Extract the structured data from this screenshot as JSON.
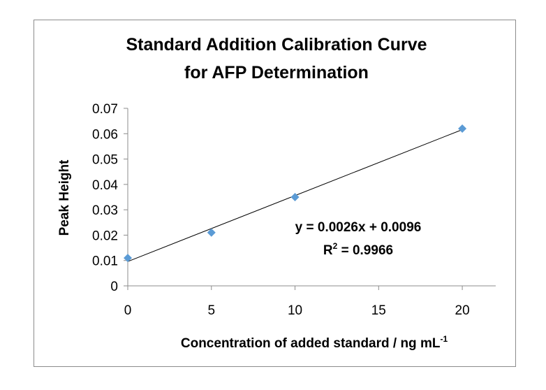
{
  "chart_data": {
    "type": "scatter",
    "title": [
      "Standard Addition Calibration Curve",
      "for AFP Determination"
    ],
    "xlabel": "Concentration of added standard / ng mL",
    "xlabel_superscript": "-1",
    "ylabel": "Peak Height",
    "xlim": [
      0,
      22
    ],
    "ylim": [
      0,
      0.07
    ],
    "x_ticks": [
      0,
      5,
      10,
      15,
      20
    ],
    "x_tick_labels": [
      "0",
      "5",
      "10",
      "15",
      "20"
    ],
    "y_ticks": [
      0,
      0.01,
      0.02,
      0.03,
      0.04,
      0.05,
      0.06,
      0.07
    ],
    "y_tick_labels": [
      "0",
      "0.01",
      "0.02",
      "0.03",
      "0.04",
      "0.05",
      "0.06",
      "0.07"
    ],
    "grid": false,
    "legend": "none",
    "series": [
      {
        "x": [
          0,
          5,
          10,
          20
        ],
        "y": [
          0.011,
          0.021,
          0.035,
          0.062
        ],
        "marker": "diamond",
        "color": "#5b9bd5"
      }
    ],
    "trendline": {
      "type": "linear",
      "slope": 0.0026,
      "intercept": 0.0096,
      "x_range": [
        0,
        20
      ],
      "color": "#000000",
      "equation_label": "y = 0.0026x + 0.0096",
      "r2_prefix": "R",
      "r2_superscript": "2",
      "r2_suffix": " = 0.9966"
    }
  }
}
